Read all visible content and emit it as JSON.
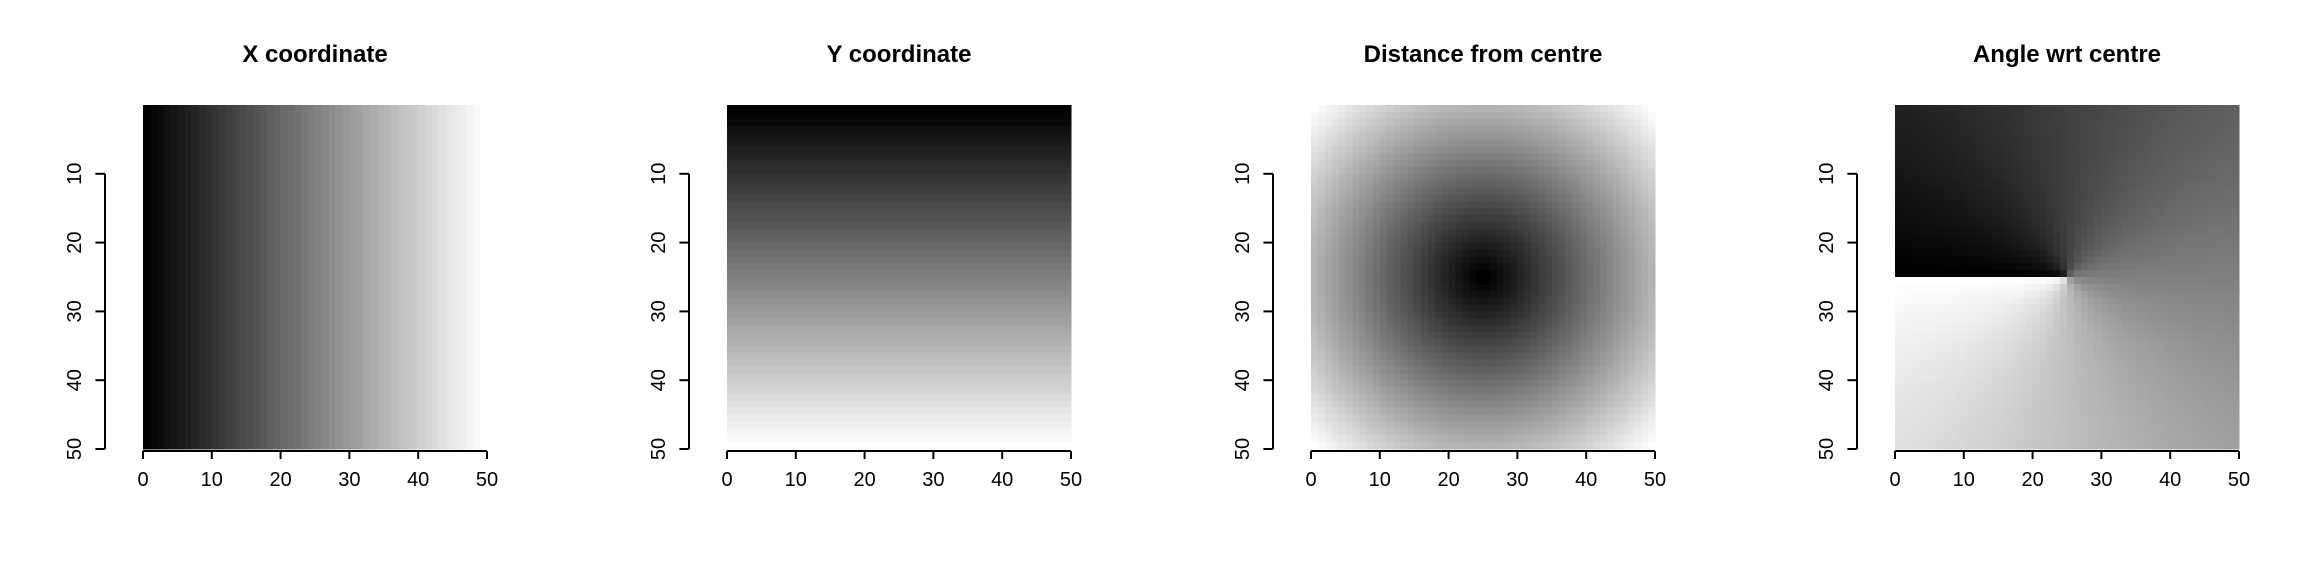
{
  "chart_data": [
    {
      "type": "heatmap",
      "title": "X coordinate",
      "field": "x",
      "xlabel": "",
      "ylabel": "",
      "grid_size": 50,
      "xlim": [
        0,
        50
      ],
      "ylim": [
        50,
        0
      ],
      "x_ticks": [
        0,
        10,
        20,
        30,
        40,
        50
      ],
      "y_ticks": [
        10,
        20,
        30,
        40,
        50
      ],
      "colormap": "grayscale",
      "grid": false
    },
    {
      "type": "heatmap",
      "title": "Y coordinate",
      "field": "y",
      "xlabel": "",
      "ylabel": "",
      "grid_size": 50,
      "xlim": [
        0,
        50
      ],
      "ylim": [
        50,
        0
      ],
      "x_ticks": [
        0,
        10,
        20,
        30,
        40,
        50
      ],
      "y_ticks": [
        10,
        20,
        30,
        40,
        50
      ],
      "colormap": "grayscale",
      "grid": false
    },
    {
      "type": "heatmap",
      "title": "Distance from centre",
      "field": "distance",
      "xlabel": "",
      "ylabel": "",
      "grid_size": 50,
      "xlim": [
        0,
        50
      ],
      "ylim": [
        50,
        0
      ],
      "x_ticks": [
        0,
        10,
        20,
        30,
        40,
        50
      ],
      "y_ticks": [
        10,
        20,
        30,
        40,
        50
      ],
      "colormap": "grayscale",
      "grid": false
    },
    {
      "type": "heatmap",
      "title": "Angle wrt centre",
      "field": "angle",
      "xlabel": "",
      "ylabel": "",
      "grid_size": 50,
      "xlim": [
        0,
        50
      ],
      "ylim": [
        50,
        0
      ],
      "x_ticks": [
        0,
        10,
        20,
        30,
        40,
        50
      ],
      "y_ticks": [
        10,
        20,
        30,
        40,
        50
      ],
      "colormap": "grayscale",
      "grid": false
    }
  ]
}
